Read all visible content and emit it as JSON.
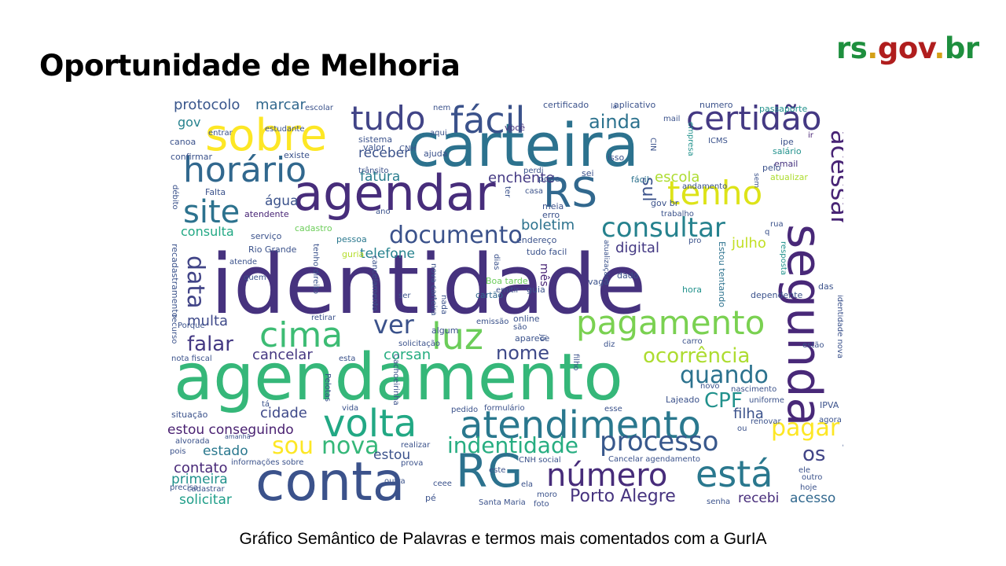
{
  "slide": {
    "title": "Oportunidade de Melhoria",
    "caption": "Gráfico Semântico de Palavras e termos mais comentados com a GurIA"
  },
  "logo": {
    "parts": [
      {
        "text": "rs",
        "color": "#1e8f3e"
      },
      {
        "text": ".",
        "color": "#d4a017"
      },
      {
        "text": "gov",
        "color": "#b01e1e"
      },
      {
        "text": ".",
        "color": "#d4a017"
      },
      {
        "text": "br",
        "color": "#1e8f3e"
      }
    ]
  },
  "wordcloud": {
    "palette": [
      "#440154",
      "#3b528b",
      "#21918c",
      "#5ec962",
      "#fde725"
    ],
    "words": [
      {
        "text": "identidade",
        "color": "#46327e"
      },
      {
        "text": "agendamento",
        "color": "#35b779"
      },
      {
        "text": "carteira",
        "color": "#2c728e"
      },
      {
        "text": "agendar",
        "color": "#472d7b"
      },
      {
        "text": "conta",
        "color": "#3b528b"
      },
      {
        "text": "segunda",
        "color": "#482878"
      },
      {
        "text": "sobre",
        "color": "#fde725"
      },
      {
        "text": "RS",
        "color": "#31688e"
      },
      {
        "text": "RG",
        "color": "#2c728e"
      },
      {
        "text": "horário",
        "color": "#31688e"
      },
      {
        "text": "atendimento",
        "color": "#2a788e"
      },
      {
        "text": "volta",
        "color": "#22a884"
      },
      {
        "text": "fácil",
        "color": "#3b528b"
      },
      {
        "text": "tudo",
        "color": "#414487"
      },
      {
        "text": "certidão",
        "color": "#443983"
      },
      {
        "text": "pagamento",
        "color": "#7ad151"
      },
      {
        "text": "cima",
        "color": "#3dbc74"
      },
      {
        "text": "luz",
        "color": "#6ccd5a"
      },
      {
        "text": "está",
        "color": "#2a788e"
      },
      {
        "text": "número",
        "color": "#472c7a"
      },
      {
        "text": "tenho",
        "color": "#dde318"
      },
      {
        "text": "site",
        "color": "#2c728e"
      },
      {
        "text": "consultar",
        "color": "#26828e"
      },
      {
        "text": "documento",
        "color": "#3b528b"
      },
      {
        "text": "acessar",
        "color": "#482475"
      },
      {
        "text": "data",
        "color": "#414487"
      },
      {
        "text": "ver",
        "color": "#3b528b"
      },
      {
        "text": "processo",
        "color": "#38588c"
      },
      {
        "text": "pagar",
        "color": "#fde725"
      },
      {
        "text": "nova",
        "color": "#35b779"
      },
      {
        "text": "sou",
        "color": "#fde725"
      },
      {
        "text": "indentidade",
        "color": "#27ad81"
      },
      {
        "text": "quando",
        "color": "#2c728e"
      },
      {
        "text": "ocorrência",
        "color": "#addc30"
      },
      {
        "text": "CPF",
        "color": "#21918c"
      },
      {
        "text": "sul",
        "color": "#3b528b"
      },
      {
        "text": "nome",
        "color": "#3e4989"
      },
      {
        "text": "falar",
        "color": "#443983"
      },
      {
        "text": "ainda",
        "color": "#2c728e"
      },
      {
        "text": "os",
        "color": "#414487"
      },
      {
        "text": "Porto Alegre",
        "color": "#46337f"
      },
      {
        "text": "protocolo",
        "color": "#39568c"
      },
      {
        "text": "marcar",
        "color": "#31688e"
      },
      {
        "text": "gov",
        "color": "#26828e"
      },
      {
        "text": "receber",
        "color": "#3b528b"
      },
      {
        "text": "enchente",
        "color": "#443983"
      },
      {
        "text": "escola",
        "color": "#addc30"
      },
      {
        "text": "fatura",
        "color": "#287d8e"
      },
      {
        "text": "água",
        "color": "#3b528b"
      },
      {
        "text": "consulta",
        "color": "#22a884"
      },
      {
        "text": "boletim",
        "color": "#2c728e"
      },
      {
        "text": "telefone",
        "color": "#26828e"
      },
      {
        "text": "digital",
        "color": "#443983"
      },
      {
        "text": "julho",
        "color": "#c2df23"
      },
      {
        "text": "multa",
        "color": "#3e4989"
      },
      {
        "text": "cancelar",
        "color": "#453781"
      },
      {
        "text": "corsan",
        "color": "#27ad81"
      },
      {
        "text": "cidade",
        "color": "#3e4989"
      },
      {
        "text": "estou conseguindo",
        "color": "#481f70"
      },
      {
        "text": "estado",
        "color": "#2a788e"
      },
      {
        "text": "contato",
        "color": "#482878"
      },
      {
        "text": "primeira",
        "color": "#21918c"
      },
      {
        "text": "solicitar",
        "color": "#1f9e89"
      },
      {
        "text": "filha",
        "color": "#3b528b"
      },
      {
        "text": "recebi",
        "color": "#472d7b"
      },
      {
        "text": "acesso",
        "color": "#31688e"
      },
      {
        "text": "estou",
        "color": "#3b528b"
      },
      {
        "text": "Rio Grande",
        "color": "#3b528b"
      },
      {
        "text": "atendente",
        "color": "#482475"
      },
      {
        "text": "serviço",
        "color": "#3b528b"
      },
      {
        "text": "cadastro",
        "color": "#6ccd5a"
      },
      {
        "text": "pessoa",
        "color": "#2a788e"
      },
      {
        "text": "guria",
        "color": "#b5de2b"
      },
      {
        "text": "tudo facil",
        "color": "#3b528b"
      },
      {
        "text": "mês",
        "color": "#482475"
      },
      {
        "text": "vaga",
        "color": "#3b528b"
      },
      {
        "text": "Boa tarde",
        "color": "#6ccd5a"
      },
      {
        "text": "cartão",
        "color": "#31688e"
      },
      {
        "text": "guia",
        "color": "#3b528b"
      },
      {
        "text": "dado",
        "color": "#3b528b"
      },
      {
        "text": "hora",
        "color": "#21918c"
      },
      {
        "text": "dependente",
        "color": "#3b528b"
      },
      {
        "text": "identidade nova",
        "color": "#3b528b"
      },
      {
        "text": "Estou tentando",
        "color": "#2c728e"
      },
      {
        "text": "resposta",
        "color": "#21918c"
      },
      {
        "text": "das",
        "color": "#3b528b"
      },
      {
        "text": "email",
        "color": "#46327e"
      },
      {
        "text": "atualizar",
        "color": "#addc30"
      },
      {
        "text": "pelo",
        "color": "#3b528b"
      },
      {
        "text": "salário",
        "color": "#21918c"
      },
      {
        "text": "passaporte",
        "color": "#21918c"
      },
      {
        "text": "ipe",
        "color": "#3b528b"
      },
      {
        "text": "ir",
        "color": "#482475"
      },
      {
        "text": "ICMS",
        "color": "#3b528b"
      },
      {
        "text": "empresa",
        "color": "#21918c"
      },
      {
        "text": "você",
        "color": "#46327e"
      },
      {
        "text": "isso",
        "color": "#3b528b"
      },
      {
        "text": "sei",
        "color": "#3b528b"
      },
      {
        "text": "pode",
        "color": "#3b528b"
      },
      {
        "text": "fácil",
        "color": "#2c728e"
      },
      {
        "text": "gov br",
        "color": "#3b528b"
      },
      {
        "text": "andamento",
        "color": "#3b528b"
      },
      {
        "text": "trabalho",
        "color": "#3b528b"
      },
      {
        "text": "endereço",
        "color": "#3b528b"
      },
      {
        "text": "meia",
        "color": "#3b528b"
      },
      {
        "text": "erro",
        "color": "#3b528b"
      },
      {
        "text": "ano",
        "color": "#3b528b"
      },
      {
        "text": "existe",
        "color": "#3b528b"
      },
      {
        "text": "confirmar",
        "color": "#3b528b"
      },
      {
        "text": "trânsito",
        "color": "#3b528b"
      },
      {
        "text": "ajuda",
        "color": "#3b528b"
      },
      {
        "text": "sistema",
        "color": "#3b528b"
      },
      {
        "text": "valor",
        "color": "#3b528b"
      },
      {
        "text": "CNH",
        "color": "#3b528b"
      },
      {
        "text": "canoa",
        "color": "#3b528b"
      },
      {
        "text": "entrar",
        "color": "#3b528b"
      },
      {
        "text": "estudante",
        "color": "#3b528b"
      },
      {
        "text": "aqui",
        "color": "#3b528b"
      },
      {
        "text": "nem",
        "color": "#3b528b"
      },
      {
        "text": "escolar",
        "color": "#3b528b"
      },
      {
        "text": "certificado",
        "color": "#3b528b"
      },
      {
        "text": "aplicativo",
        "color": "#3b528b"
      },
      {
        "text": "numero",
        "color": "#3b528b"
      },
      {
        "text": "mail",
        "color": "#3b528b"
      },
      {
        "text": "CIN",
        "color": "#3b528b"
      },
      {
        "text": "Falta",
        "color": "#3b528b"
      },
      {
        "text": "débito",
        "color": "#3b528b"
      },
      {
        "text": "recadastramento",
        "color": "#3b528b"
      },
      {
        "text": "atende",
        "color": "#3b528b"
      },
      {
        "text": "quem",
        "color": "#3b528b"
      },
      {
        "text": "tenho direito",
        "color": "#3b528b"
      },
      {
        "text": "recurso",
        "color": "#3b528b"
      },
      {
        "text": "Porque",
        "color": "#3b528b"
      },
      {
        "text": "retirar",
        "color": "#3b528b"
      },
      {
        "text": "ser",
        "color": "#3b528b"
      },
      {
        "text": "cancelamento",
        "color": "#3b528b"
      },
      {
        "text": "nova carteira",
        "color": "#3b528b"
      },
      {
        "text": "nada",
        "color": "#3b528b"
      },
      {
        "text": "emitir",
        "color": "#3b528b"
      },
      {
        "text": "dias",
        "color": "#3b528b"
      },
      {
        "text": "emissão",
        "color": "#3b528b"
      },
      {
        "text": "algum",
        "color": "#3b528b"
      },
      {
        "text": "online",
        "color": "#3b528b"
      },
      {
        "text": "são",
        "color": "#3b528b"
      },
      {
        "text": "aparece",
        "color": "#3b528b"
      },
      {
        "text": "solicitação",
        "color": "#3b528b"
      },
      {
        "text": "já",
        "color": "#3b528b"
      },
      {
        "text": "diz",
        "color": "#3b528b"
      },
      {
        "text": "carro",
        "color": "#3b528b"
      },
      {
        "text": "estão",
        "color": "#3b528b"
      },
      {
        "text": "nota fiscal",
        "color": "#3b528b"
      },
      {
        "text": "esta",
        "color": "#3b528b"
      },
      {
        "text": "Cachoeirinha",
        "color": "#3b528b"
      },
      {
        "text": "Pelotas",
        "color": "#3b528b"
      },
      {
        "text": "vida",
        "color": "#3b528b"
      },
      {
        "text": "pedido",
        "color": "#3b528b"
      },
      {
        "text": "formulário",
        "color": "#3b528b"
      },
      {
        "text": "filho",
        "color": "#3b528b"
      },
      {
        "text": "novo",
        "color": "#3b528b"
      },
      {
        "text": "nascimento",
        "color": "#3b528b"
      },
      {
        "text": "Lajeado",
        "color": "#3b528b"
      },
      {
        "text": "esse",
        "color": "#3b528b"
      },
      {
        "text": "uniforme",
        "color": "#3b528b"
      },
      {
        "text": "IPVA",
        "color": "#3b528b"
      },
      {
        "text": "tá",
        "color": "#3b528b"
      },
      {
        "text": "situação",
        "color": "#3b528b"
      },
      {
        "text": "renovar",
        "color": "#3b528b"
      },
      {
        "text": "agora",
        "color": "#3b528b"
      },
      {
        "text": "ou",
        "color": "#3b528b"
      },
      {
        "text": "informação",
        "color": "#3b528b"
      },
      {
        "text": "alvorada",
        "color": "#3b528b"
      },
      {
        "text": "amanhã",
        "color": "#3b528b"
      },
      {
        "text": "pois",
        "color": "#3b528b"
      },
      {
        "text": "realizar",
        "color": "#3b528b"
      },
      {
        "text": "CNH social",
        "color": "#3b528b"
      },
      {
        "text": "Cancelar agendamento",
        "color": "#3b528b"
      },
      {
        "text": "informações sobre",
        "color": "#3b528b"
      },
      {
        "text": "prova",
        "color": "#3b528b"
      },
      {
        "text": "este",
        "color": "#3b528b"
      },
      {
        "text": "ele",
        "color": "#3b528b"
      },
      {
        "text": "outro",
        "color": "#3b528b"
      },
      {
        "text": "hoje",
        "color": "#3b528b"
      },
      {
        "text": "outra",
        "color": "#3b528b"
      },
      {
        "text": "ela",
        "color": "#3b528b"
      },
      {
        "text": "precisa",
        "color": "#3b528b"
      },
      {
        "text": "cadastrar",
        "color": "#3b528b"
      },
      {
        "text": "ceee",
        "color": "#3b528b"
      },
      {
        "text": "pé",
        "color": "#3b528b"
      },
      {
        "text": "moro",
        "color": "#3b528b"
      },
      {
        "text": "Santa Maria",
        "color": "#3b528b"
      },
      {
        "text": "foto",
        "color": "#3b528b"
      },
      {
        "text": "senha",
        "color": "#3b528b"
      },
      {
        "text": "sem",
        "color": "#3b528b"
      },
      {
        "text": "rua",
        "color": "#3b528b"
      },
      {
        "text": "q",
        "color": "#3b528b"
      },
      {
        "text": "pro",
        "color": "#3b528b"
      },
      {
        "text": "casa",
        "color": "#3b528b"
      },
      {
        "text": "perdi",
        "color": "#3b528b"
      },
      {
        "text": "ter",
        "color": "#3b528b"
      },
      {
        "text": "atualização",
        "color": "#3b528b"
      },
      {
        "text": "lá",
        "color": "#3b528b"
      }
    ]
  }
}
